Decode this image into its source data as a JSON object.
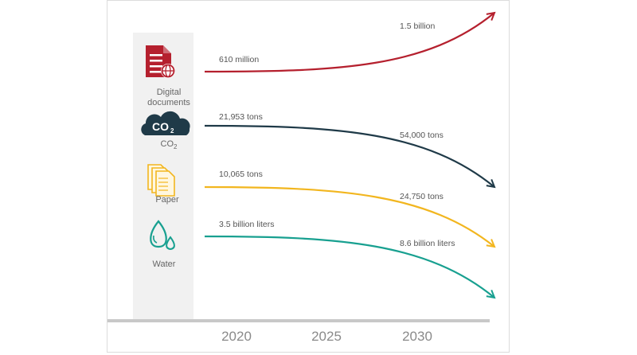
{
  "chart_data": {
    "type": "line",
    "x": [
      "2020",
      "2025",
      "2030"
    ],
    "series": [
      {
        "name": "Digital documents",
        "color": "#b5202e",
        "icon": "digital-document-icon",
        "start_label": "610 million",
        "end_label": "1.5 billion",
        "trend": "up"
      },
      {
        "name": "CO₂",
        "color": "#1f3a48",
        "icon": "co2-cloud-icon",
        "icon_text": "CO₂",
        "start_label": "21,953 tons",
        "end_label": "54,000 tons",
        "trend": "down"
      },
      {
        "name": "Paper",
        "color": "#f2b61f",
        "icon": "paper-stack-icon",
        "start_label": "10,065 tons",
        "end_label": "24,750 tons",
        "trend": "down"
      },
      {
        "name": "Water",
        "color": "#18a090",
        "icon": "water-drop-icon",
        "start_label": "3.5 billion liters",
        "end_label": "8.6 billion liters",
        "trend": "down"
      }
    ],
    "title": "",
    "xlabel": "",
    "ylabel": "",
    "grid": false,
    "legend": "left"
  }
}
